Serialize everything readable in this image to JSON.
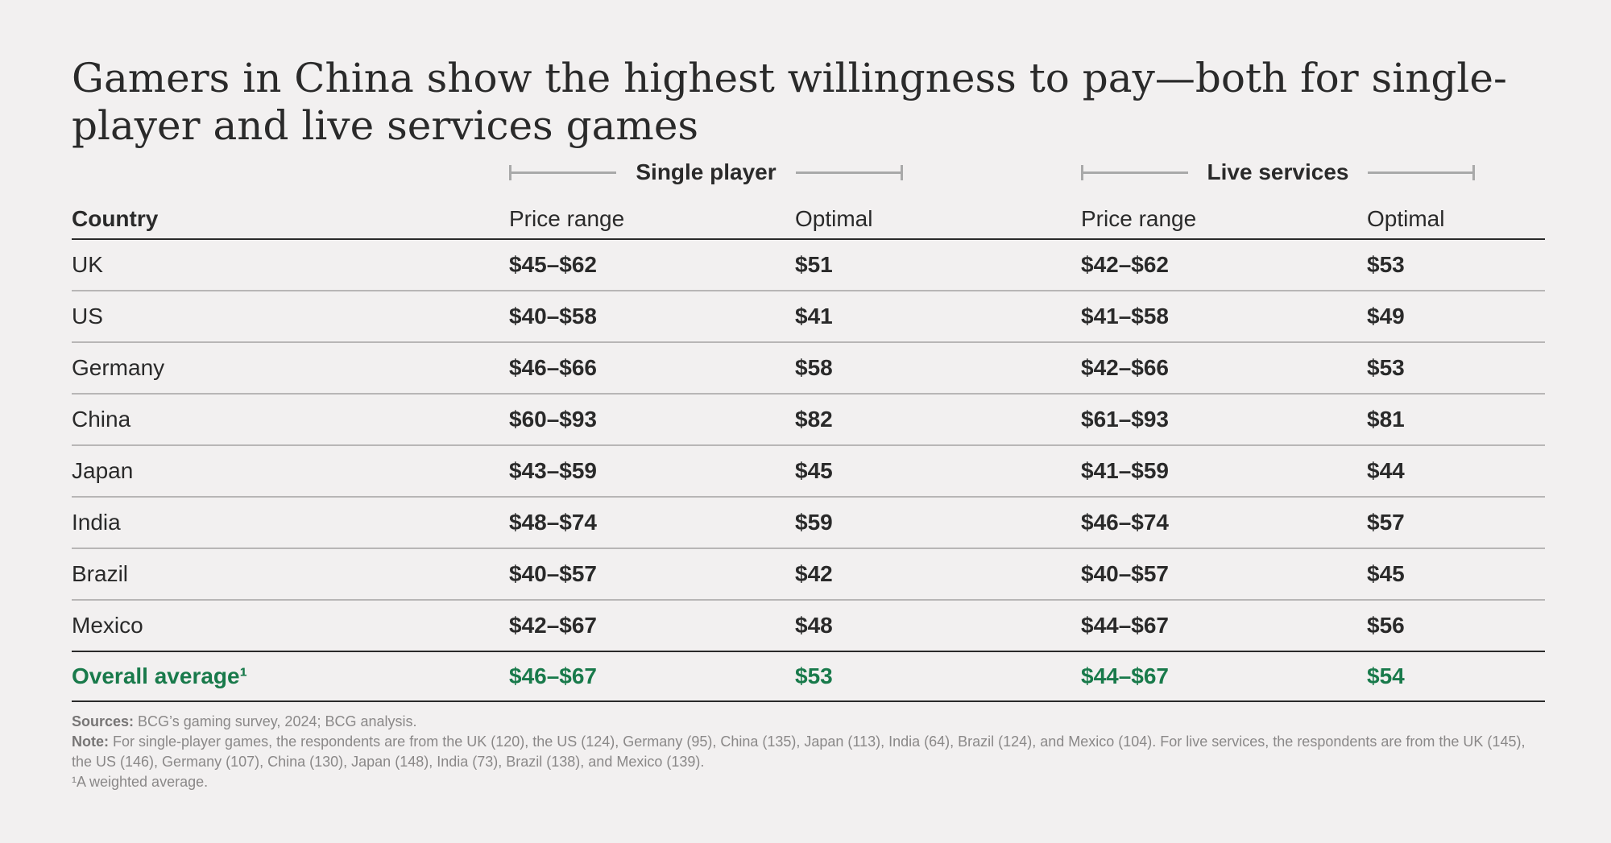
{
  "title": "Gamers in China show the highest willingness to pay—both for single-player and live services games",
  "groups": {
    "single_player": "Single player",
    "live_services": "Live services"
  },
  "headers": {
    "country": "Country",
    "sp_price_range": "Price range",
    "sp_optimal": "Optimal",
    "ls_price_range": "Price range",
    "ls_optimal": "Optimal"
  },
  "rows": [
    {
      "country": "UK",
      "sp_range": "$45–$62",
      "sp_optimal": "$51",
      "ls_range": "$42–$62",
      "ls_optimal": "$53"
    },
    {
      "country": "US",
      "sp_range": "$40–$58",
      "sp_optimal": "$41",
      "ls_range": "$41–$58",
      "ls_optimal": "$49"
    },
    {
      "country": "Germany",
      "sp_range": "$46–$66",
      "sp_optimal": "$58",
      "ls_range": "$42–$66",
      "ls_optimal": "$53"
    },
    {
      "country": "China",
      "sp_range": "$60–$93",
      "sp_optimal": "$82",
      "ls_range": "$61–$93",
      "ls_optimal": "$81"
    },
    {
      "country": "Japan",
      "sp_range": "$43–$59",
      "sp_optimal": "$45",
      "ls_range": "$41–$59",
      "ls_optimal": "$44"
    },
    {
      "country": "India",
      "sp_range": "$48–$74",
      "sp_optimal": "$59",
      "ls_range": "$46–$74",
      "ls_optimal": "$57"
    },
    {
      "country": "Brazil",
      "sp_range": "$40–$57",
      "sp_optimal": "$42",
      "ls_range": "$40–$57",
      "ls_optimal": "$45"
    },
    {
      "country": "Mexico",
      "sp_range": "$42–$67",
      "sp_optimal": "$48",
      "ls_range": "$44–$67",
      "ls_optimal": "$56"
    }
  ],
  "average": {
    "country": "Overall average¹",
    "sp_range": "$46–$67",
    "sp_optimal": "$53",
    "ls_range": "$44–$67",
    "ls_optimal": "$54"
  },
  "notes": {
    "sources_label": "Sources:",
    "sources_text": " BCG’s gaming survey, 2024; BCG analysis.",
    "note_label": "Note:",
    "note_text": " For single-player games, the respondents are from the UK (120), the US (124), Germany (95), China (135), Japan (113), India (64), Brazil (124), and Mexico (104). For live services, the respondents are from the UK (145), the US (146), Germany (107), China (130), Japan (148), India (73), Brazil (138), and Mexico (139).",
    "footnote": "¹A weighted average."
  },
  "colors": {
    "accent": "#197a4b",
    "text": "#2a2a2a",
    "background": "#f2f0f0"
  }
}
